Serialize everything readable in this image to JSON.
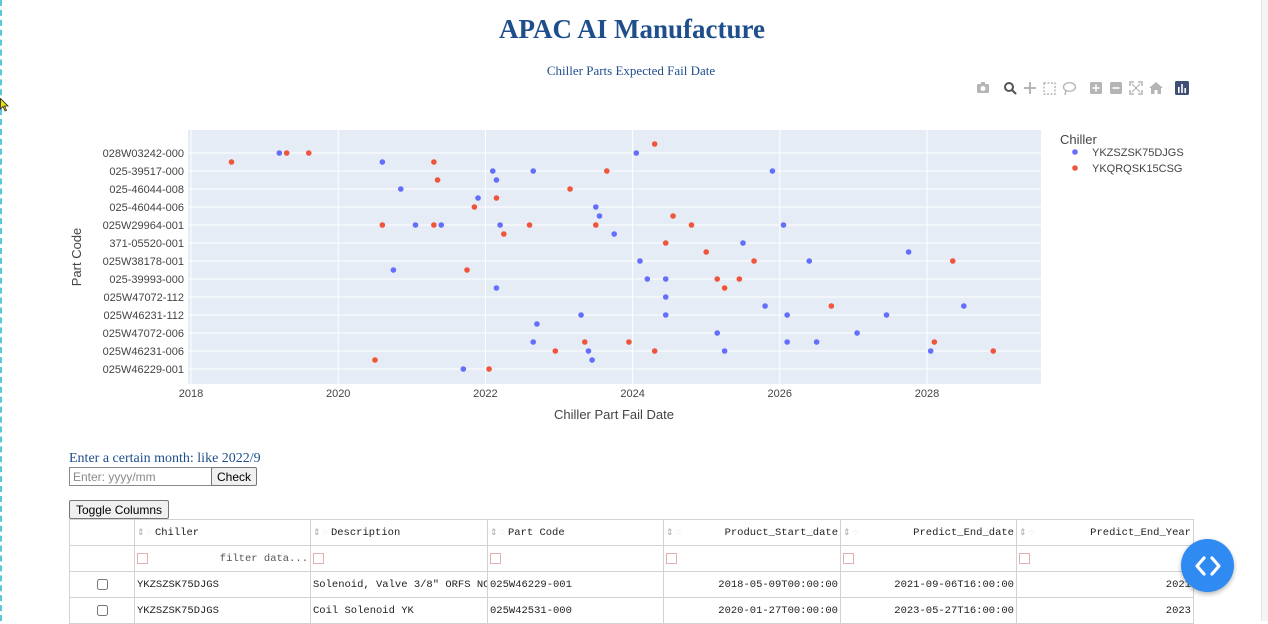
{
  "app": {
    "title": "APAC AI Manufacture"
  },
  "chart_data": {
    "type": "scatter",
    "title": "Chiller Parts Expected Fail Date",
    "xlabel": "Chiller Part Fail Date",
    "ylabel": "Part Code",
    "xlim": [
      2018,
      2029.5
    ],
    "x_ticks": [
      2018,
      2020,
      2022,
      2024,
      2026,
      2028
    ],
    "categories": [
      "028W03242-000",
      "025-39517-000",
      "025-46044-008",
      "025-46044-006",
      "025W29964-001",
      "371-05520-001",
      "025W38178-001",
      "025-39993-000",
      "025W47072-112",
      "025W46231-112",
      "025W47072-006",
      "025W46231-006",
      "025W46229-001"
    ],
    "legend_title": "Chiller",
    "legend_position": "top-right",
    "grid": true,
    "series": [
      {
        "name": "YKZSZSK75DJGS",
        "color": "#636efa",
        "points": [
          [
            2020.6,
            0.5
          ],
          [
            2019.2,
            0
          ],
          [
            2022.1,
            1
          ],
          [
            2022.65,
            1
          ],
          [
            2024.05,
            0
          ],
          [
            2025.9,
            1
          ],
          [
            2020.85,
            2
          ],
          [
            2022.15,
            1.5
          ],
          [
            2021.9,
            2.5
          ],
          [
            2023.5,
            3
          ],
          [
            2023.55,
            3.5
          ],
          [
            2021.05,
            4
          ],
          [
            2021.4,
            4
          ],
          [
            2022.2,
            4
          ],
          [
            2026.05,
            4
          ],
          [
            2023.75,
            4.5
          ],
          [
            2025.5,
            5
          ],
          [
            2024.1,
            6
          ],
          [
            2026.4,
            6
          ],
          [
            2027.75,
            5.5
          ],
          [
            2020.75,
            6.5
          ],
          [
            2024.2,
            7
          ],
          [
            2024.45,
            7
          ],
          [
            2022.15,
            7.5
          ],
          [
            2024.45,
            8
          ],
          [
            2025.8,
            8.5
          ],
          [
            2023.3,
            9
          ],
          [
            2024.45,
            9
          ],
          [
            2026.1,
            9
          ],
          [
            2027.45,
            9
          ],
          [
            2028.5,
            8.5
          ],
          [
            2022.7,
            9.5
          ],
          [
            2025.15,
            10
          ],
          [
            2027.05,
            10
          ],
          [
            2022.65,
            10.5
          ],
          [
            2026.1,
            10.5
          ],
          [
            2026.5,
            10.5
          ],
          [
            2023.4,
            11
          ],
          [
            2025.25,
            11
          ],
          [
            2028.05,
            11
          ],
          [
            2023.45,
            11.5
          ],
          [
            2021.7,
            12
          ]
        ]
      },
      {
        "name": "YKQRQSK15CSG",
        "color": "#ef553b",
        "points": [
          [
            2018.55,
            0.5
          ],
          [
            2019.3,
            0
          ],
          [
            2019.6,
            0
          ],
          [
            2021.3,
            0.5
          ],
          [
            2024.3,
            -0.5
          ],
          [
            2023.65,
            1
          ],
          [
            2021.35,
            1.5
          ],
          [
            2023.15,
            2
          ],
          [
            2022.15,
            2.5
          ],
          [
            2021.85,
            3
          ],
          [
            2024.55,
            3.5
          ],
          [
            2020.6,
            4
          ],
          [
            2021.3,
            4
          ],
          [
            2022.6,
            4
          ],
          [
            2023.5,
            4
          ],
          [
            2024.8,
            4
          ],
          [
            2022.25,
            4.5
          ],
          [
            2024.45,
            5
          ],
          [
            2025.0,
            5.5
          ],
          [
            2025.65,
            6
          ],
          [
            2028.35,
            6
          ],
          [
            2021.75,
            6.5
          ],
          [
            2025.15,
            7
          ],
          [
            2025.45,
            7
          ],
          [
            2025.25,
            7.5
          ],
          [
            2026.7,
            8.5
          ],
          [
            2023.35,
            10.5
          ],
          [
            2023.95,
            10.5
          ],
          [
            2028.1,
            10.5
          ],
          [
            2022.95,
            11
          ],
          [
            2024.3,
            11
          ],
          [
            2028.9,
            11
          ],
          [
            2020.5,
            11.5
          ],
          [
            2022.05,
            12
          ]
        ]
      }
    ]
  },
  "filter_form": {
    "label": "Enter a certain month: like 2022/9",
    "placeholder": "Enter: yyyy/mm",
    "check_label": "Check"
  },
  "table": {
    "toggle_label": "Toggle Columns",
    "columns": [
      "Chiller",
      "Description",
      "Part Code",
      "Product_Start_date",
      "Predict_End_date",
      "Predict_End_Year"
    ],
    "filter_placeholder": "filter data...",
    "rows": [
      [
        "YKZSZSK75DJGS",
        "Solenoid, Valve 3/8\" ORFS NC",
        "025W46229-001",
        "2018-05-09T00:00:00",
        "2021-09-06T16:00:00",
        "2021"
      ],
      [
        "YKZSZSK75DJGS",
        "Coil Solenoid YK",
        "025W42531-000",
        "2020-01-27T00:00:00",
        "2023-05-27T16:00:00",
        "2023"
      ]
    ]
  }
}
